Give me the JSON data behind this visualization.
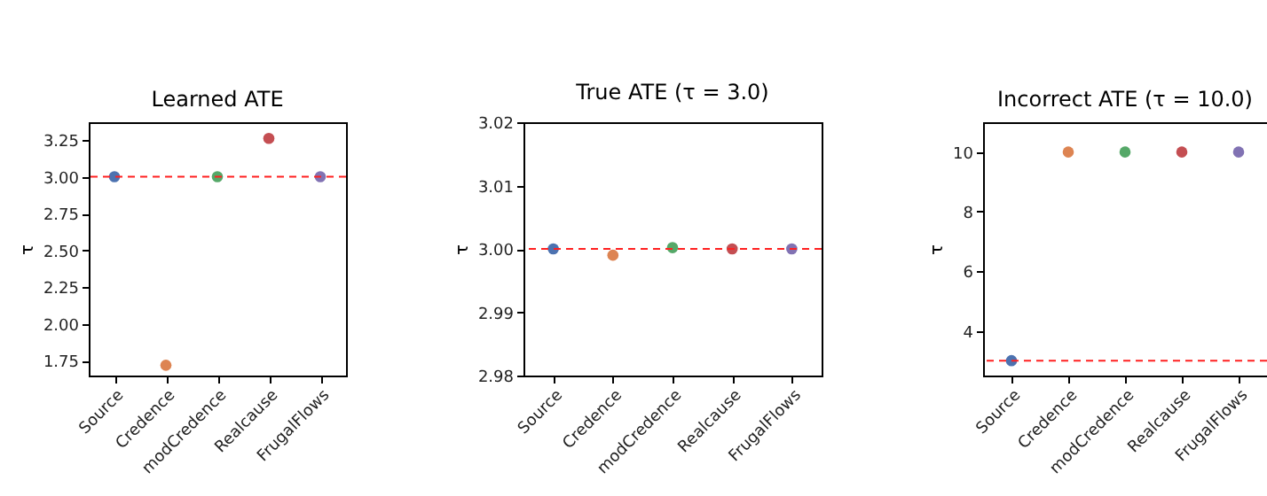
{
  "chart_data": [
    {
      "type": "scatter",
      "title": "Learned ATE",
      "ylabel": "τ",
      "categories": [
        "Source",
        "Credence",
        "modCredence",
        "Realcause",
        "FrugalFlows"
      ],
      "ylim": [
        1.65,
        3.37
      ],
      "yticks": [
        1.75,
        {
          "value": 2.0,
          "label": "2.00"
        },
        2.25,
        {
          "value": 2.5,
          "label": "2.50"
        },
        2.75,
        {
          "value": 3.0,
          "label": "3.00"
        },
        3.25
      ],
      "grid": false,
      "legend": false,
      "marker": "circle",
      "ref_lines": [
        {
          "axis": "y",
          "value": 3.0,
          "color": "#ff2020",
          "line_style": "dashed"
        }
      ],
      "series": [
        {
          "color": "#4c72b0",
          "x": [
            "Source"
          ],
          "values": [
            3.0
          ]
        },
        {
          "color": "#dd8452",
          "x": [
            "Credence"
          ],
          "values": [
            1.72
          ]
        },
        {
          "color": "#55a868",
          "x": [
            "modCredence"
          ],
          "values": [
            3.0
          ]
        },
        {
          "color": "#c44e52",
          "x": [
            "Realcause"
          ],
          "values": [
            3.26
          ]
        },
        {
          "color": "#8172b3",
          "x": [
            "FrugalFlows"
          ],
          "values": [
            3.0
          ]
        }
      ]
    },
    {
      "type": "scatter",
      "title": "True ATE (τ = 3.0)",
      "ylabel": "τ",
      "categories": [
        "Source",
        "Credence",
        "modCredence",
        "Realcause",
        "FrugalFlows"
      ],
      "ylim": [
        2.98,
        3.02
      ],
      "yticks": [
        2.98,
        2.99,
        {
          "value": 3.0,
          "label": "3.00"
        },
        3.01,
        3.02
      ],
      "grid": false,
      "legend": false,
      "marker": "circle",
      "ref_lines": [
        {
          "axis": "y",
          "value": 3.0,
          "color": "#ff2020",
          "line_style": "dashed"
        }
      ],
      "series": [
        {
          "color": "#4c72b0",
          "x": [
            "Source"
          ],
          "values": [
            3.0
          ]
        },
        {
          "color": "#dd8452",
          "x": [
            "Credence"
          ],
          "values": [
            2.999
          ]
        },
        {
          "color": "#55a868",
          "x": [
            "modCredence"
          ],
          "values": [
            3.0002
          ]
        },
        {
          "color": "#c44e52",
          "x": [
            "Realcause"
          ],
          "values": [
            3.0
          ]
        },
        {
          "color": "#8172b3",
          "x": [
            "FrugalFlows"
          ],
          "values": [
            3.0
          ]
        }
      ]
    },
    {
      "type": "scatter",
      "title": "Incorrect ATE (τ = 10.0)",
      "ylabel": "τ",
      "categories": [
        "Source",
        "Credence",
        "modCredence",
        "Realcause",
        "FrugalFlows"
      ],
      "ylim": [
        2.5,
        11
      ],
      "yticks": [
        4,
        6,
        8,
        10
      ],
      "grid": false,
      "legend": false,
      "marker": "circle",
      "ref_lines": [
        {
          "axis": "y",
          "value": 3.0,
          "color": "#ff2020",
          "line_style": "dashed"
        }
      ],
      "series": [
        {
          "color": "#4c72b0",
          "x": [
            "Source"
          ],
          "values": [
            3.0
          ]
        },
        {
          "color": "#dd8452",
          "x": [
            "Credence"
          ],
          "values": [
            10.0
          ]
        },
        {
          "color": "#55a868",
          "x": [
            "modCredence"
          ],
          "values": [
            10.0
          ]
        },
        {
          "color": "#c44e52",
          "x": [
            "Realcause"
          ],
          "values": [
            10.0
          ]
        },
        {
          "color": "#8172b3",
          "x": [
            "FrugalFlows"
          ],
          "values": [
            10.0
          ]
        }
      ]
    }
  ]
}
